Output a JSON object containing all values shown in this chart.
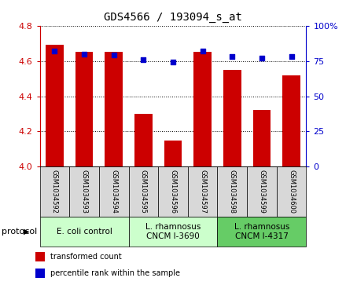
{
  "title": "GDS4566 / 193094_s_at",
  "samples": [
    "GSM1034592",
    "GSM1034593",
    "GSM1034594",
    "GSM1034595",
    "GSM1034596",
    "GSM1034597",
    "GSM1034598",
    "GSM1034599",
    "GSM1034600"
  ],
  "transformed_counts": [
    4.69,
    4.65,
    4.65,
    4.3,
    4.15,
    4.65,
    4.55,
    4.32,
    4.52
  ],
  "percentile_ranks": [
    82,
    80,
    79,
    76,
    74,
    82,
    78,
    77,
    78
  ],
  "ylim_left": [
    4.0,
    4.8
  ],
  "ylim_right": [
    0,
    100
  ],
  "yticks_left": [
    4.0,
    4.2,
    4.4,
    4.6,
    4.8
  ],
  "yticks_right": [
    0,
    25,
    50,
    75,
    100
  ],
  "ytick_labels_right": [
    "0",
    "25",
    "50",
    "75",
    "100%"
  ],
  "bar_color": "#cc0000",
  "dot_color": "#0000cc",
  "bar_width": 0.6,
  "group_colors": [
    "#ccffcc",
    "#ccffcc",
    "#66cc66"
  ],
  "group_labels": [
    "E. coli control",
    "L. rhamnosus\nCNCM I-3690",
    "L. rhamnosus\nCNCM I-4317"
  ],
  "group_ranges": [
    [
      0,
      3
    ],
    [
      3,
      6
    ],
    [
      6,
      9
    ]
  ],
  "protocol_label": "protocol",
  "legend_items": [
    {
      "label": "transformed count",
      "color": "#cc0000"
    },
    {
      "label": "percentile rank within the sample",
      "color": "#0000cc"
    }
  ],
  "left_tick_color": "#cc0000",
  "right_tick_color": "#0000cc",
  "sample_box_color": "#d8d8d8",
  "title_fontsize": 10,
  "tick_fontsize": 8,
  "sample_fontsize": 6,
  "group_fontsize": 7.5,
  "legend_fontsize": 7
}
